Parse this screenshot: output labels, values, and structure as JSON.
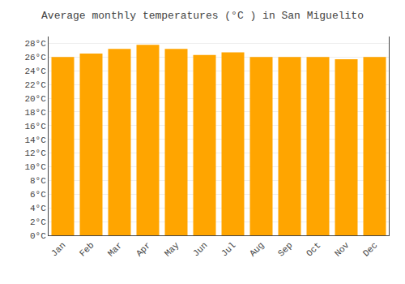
{
  "chart_data": {
    "type": "bar",
    "title": "Average monthly temperatures (°C ) in San Miguelito",
    "categories": [
      "Jan",
      "Feb",
      "Mar",
      "Apr",
      "May",
      "Jun",
      "Jul",
      "Aug",
      "Sep",
      "Oct",
      "Nov",
      "Dec"
    ],
    "values": [
      26.0,
      26.5,
      27.2,
      27.8,
      27.2,
      26.3,
      26.7,
      26.0,
      26.0,
      26.0,
      25.7,
      26.0
    ],
    "color": "#FFA500",
    "ylim": [
      0,
      29
    ],
    "yticks": [
      {
        "value": 0,
        "label": "0°C"
      },
      {
        "value": 2,
        "label": "2°C"
      },
      {
        "value": 4,
        "label": "4°C"
      },
      {
        "value": 6,
        "label": "6°C"
      },
      {
        "value": 8,
        "label": "8°C"
      },
      {
        "value": 10,
        "label": "10°C"
      },
      {
        "value": 12,
        "label": "12°C"
      },
      {
        "value": 14,
        "label": "14°C"
      },
      {
        "value": 16,
        "label": "16°C"
      },
      {
        "value": 18,
        "label": "18°C"
      },
      {
        "value": 20,
        "label": "20°C"
      },
      {
        "value": 22,
        "label": "22°C"
      },
      {
        "value": 24,
        "label": "24°C"
      },
      {
        "value": 26,
        "label": "26°C"
      },
      {
        "value": 28,
        "label": "28°C"
      }
    ],
    "grid": true
  }
}
